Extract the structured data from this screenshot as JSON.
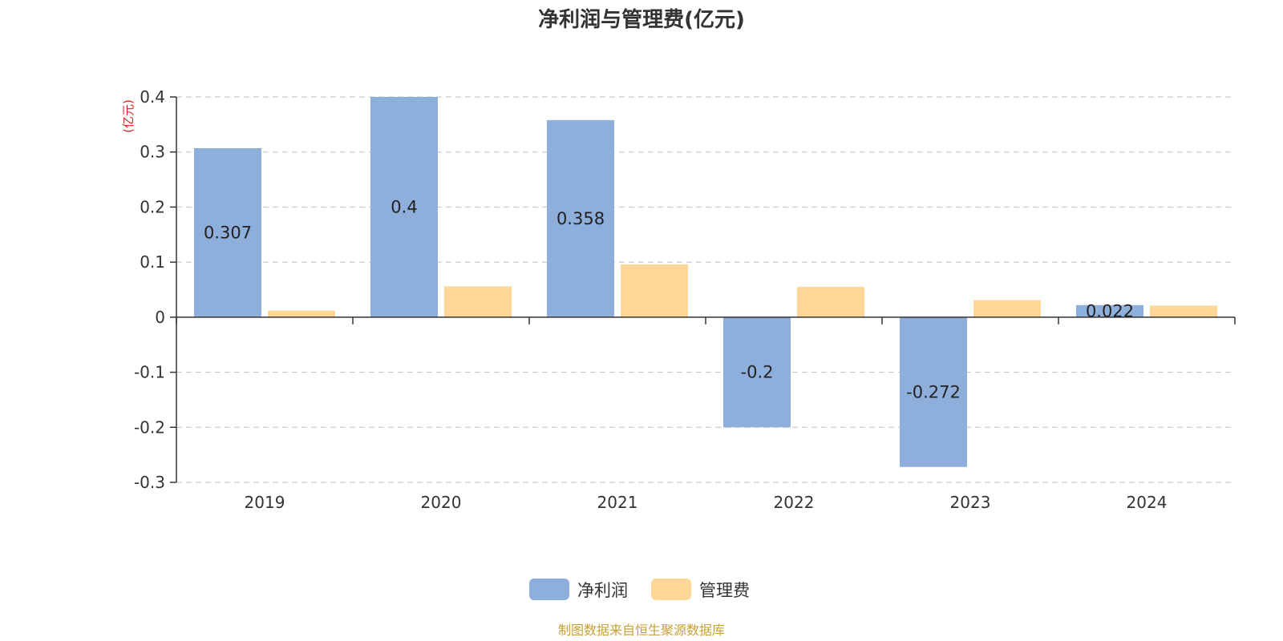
{
  "chart_data": {
    "type": "bar",
    "title": "净利润与管理费(亿元)",
    "y_unit": "(亿元)",
    "categories": [
      "2019",
      "2020",
      "2021",
      "2022",
      "2023",
      "2024"
    ],
    "series": [
      {
        "name": "净利润",
        "color": "#8eaedb",
        "values": [
          0.307,
          0.4,
          0.358,
          -0.2,
          -0.272,
          0.022
        ],
        "data_labels": [
          "0.307",
          "0.4",
          "0.358",
          "-0.2",
          "-0.272",
          "0.022"
        ]
      },
      {
        "name": "管理费",
        "color": "#ffd898",
        "values": [
          0.012,
          0.056,
          0.096,
          0.055,
          0.031,
          0.021
        ]
      }
    ],
    "ylim": [
      -0.3,
      0.4
    ],
    "yticks": [
      0.4,
      0.3,
      0.2,
      0.1,
      0,
      -0.1,
      -0.2,
      -0.3
    ],
    "ytick_labels": [
      "0.4",
      "0.3",
      "0.2",
      "0.1",
      "0",
      "-0.1",
      "-0.2",
      "-0.3"
    ],
    "grid": true,
    "legend_position": "bottom-center",
    "unit_color": "#e02020"
  },
  "footer": {
    "source": "制图数据来自恒生聚源数据库",
    "color": "#c8a033"
  }
}
